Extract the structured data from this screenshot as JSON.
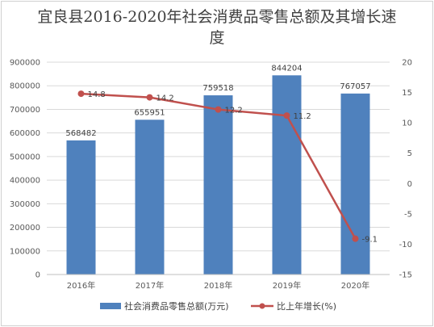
{
  "chart_data": {
    "type": "bar",
    "title": "宜良县2016-2020年社会消费品零售总额及其增长速度",
    "categories": [
      "2016年",
      "2017年",
      "2018年",
      "2019年",
      "2020年"
    ],
    "series": [
      {
        "name": "社会消费品零售总额(万元)",
        "type": "bar",
        "axis": "left",
        "color": "#4f81bd",
        "values": [
          568482,
          655951,
          759518,
          844204,
          767057
        ]
      },
      {
        "name": "比上年增长(%)",
        "type": "line",
        "axis": "right",
        "color": "#c0504d",
        "values": [
          14.8,
          14.2,
          12.2,
          11.2,
          -9.1
        ]
      }
    ],
    "y_left": {
      "range": [
        0,
        900000
      ],
      "ticks": [
        "0",
        "100000",
        "200000",
        "300000",
        "400000",
        "500000",
        "600000",
        "700000",
        "800000",
        "900000"
      ]
    },
    "y_right": {
      "range": [
        -15,
        20
      ],
      "ticks": [
        "-15",
        "-10",
        "-5",
        "0",
        "5",
        "10",
        "15",
        "20"
      ]
    },
    "bar_labels": [
      "568482",
      "655951",
      "759518",
      "844204",
      "767057"
    ],
    "line_labels": [
      "14.8",
      "14.2",
      "12.2",
      "11.2",
      "-9.1"
    ],
    "grid": true,
    "legend_position": "bottom"
  }
}
